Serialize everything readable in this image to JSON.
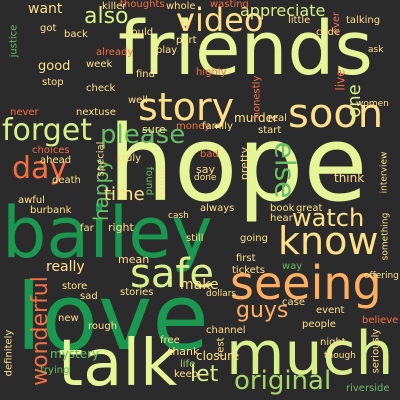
{
  "word_cloud": {
    "background": "#2b2b2b",
    "words": [
      {
        "id": "hope",
        "text": "hope",
        "color": "#e6f598",
        "rotated": false
      },
      {
        "id": "friends",
        "text": "friends",
        "color": "#e6f598",
        "rotated": false
      },
      {
        "id": "bailey",
        "text": "bailey",
        "color": "#1a9850",
        "rotated": false
      },
      {
        "id": "love",
        "text": "love",
        "color": "#1a9850",
        "rotated": false
      },
      {
        "id": "talk",
        "text": "talk",
        "color": "#e6f598",
        "rotated": false
      },
      {
        "id": "much",
        "text": "much",
        "color": "#d9ef8b",
        "rotated": false
      },
      {
        "id": "seeing",
        "text": "seeing",
        "color": "#fdae61",
        "rotated": false
      },
      {
        "id": "know",
        "text": "know",
        "color": "#fee08b",
        "rotated": false
      },
      {
        "id": "soon",
        "text": "soon",
        "color": "#fee08b",
        "rotated": false
      },
      {
        "id": "story",
        "text": "story",
        "color": "#fee08b",
        "rotated": false
      },
      {
        "id": "video",
        "text": "video",
        "color": "#fee08b",
        "rotated": false
      },
      {
        "id": "safe",
        "text": "safe",
        "color": "#d9ef8b",
        "rotated": false
      },
      {
        "id": "original",
        "text": "original",
        "color": "#a6d96a",
        "rotated": false
      },
      {
        "id": "watch",
        "text": "watch",
        "color": "#fee08b",
        "rotated": false
      },
      {
        "id": "please",
        "text": "please",
        "color": "#66bd63",
        "rotated": false
      },
      {
        "id": "forget",
        "text": "forget",
        "color": "#d9ef8b",
        "rotated": false
      },
      {
        "id": "also",
        "text": "also",
        "color": "#d9ef8b",
        "rotated": false
      },
      {
        "id": "day",
        "text": "day",
        "color": "#f46d43",
        "rotated": false
      },
      {
        "id": "guys",
        "text": "guys",
        "color": "#fdae61",
        "rotated": false
      },
      {
        "id": "wonderful",
        "text": "wonderful",
        "color": "#f46d43",
        "rotated": true
      },
      {
        "id": "happy",
        "text": "happy",
        "color": "#66bd63",
        "rotated": true
      },
      {
        "id": "time",
        "text": "time",
        "color": "#fee08b",
        "rotated": false
      },
      {
        "id": "else",
        "text": "else",
        "color": "#66bd63",
        "rotated": true
      },
      {
        "id": "one",
        "text": "one",
        "color": "#d9ef8b",
        "rotated": true
      },
      {
        "id": "let",
        "text": "let",
        "color": "#d9ef8b",
        "rotated": false
      },
      {
        "id": "appreciate",
        "text": "appreciate",
        "color": "#d9ef8b",
        "rotated": false
      },
      {
        "id": "really",
        "text": "really",
        "color": "#fee08b",
        "rotated": false
      },
      {
        "id": "make",
        "text": "make",
        "color": "#fee08b",
        "rotated": false
      },
      {
        "id": "want",
        "text": "want",
        "color": "#fee08b",
        "rotated": false
      },
      {
        "id": "good",
        "text": "good",
        "color": "#fee08b",
        "rotated": false
      },
      {
        "id": "mean",
        "text": "mean",
        "color": "#fee08b",
        "rotated": false
      },
      {
        "id": "right",
        "text": "right",
        "color": "#fee08b",
        "rotated": false
      },
      {
        "id": "sure",
        "text": "sure",
        "color": "#fee08b",
        "rotated": false
      },
      {
        "id": "think",
        "text": "think",
        "color": "#fee08b",
        "rotated": false
      },
      {
        "id": "mystery",
        "text": "mystery",
        "color": "#66bd63",
        "rotated": false
      },
      {
        "id": "murder",
        "text": "murder",
        "color": "#fee08b",
        "rotated": false
      },
      {
        "id": "closure",
        "text": "closure",
        "color": "#fee08b",
        "rotated": false
      },
      {
        "id": "thank",
        "text": "thank",
        "color": "#fee08b",
        "rotated": false
      },
      {
        "id": "stories",
        "text": "stories",
        "color": "#fee08b",
        "rotated": false
      },
      {
        "id": "always",
        "text": "always",
        "color": "#fee08b",
        "rotated": false
      },
      {
        "id": "tickets",
        "text": "tickets",
        "color": "#fee08b",
        "rotated": false
      },
      {
        "id": "case",
        "text": "case",
        "color": "#fee08b",
        "rotated": false
      },
      {
        "id": "people",
        "text": "people",
        "color": "#fee08b",
        "rotated": false
      },
      {
        "id": "night",
        "text": "night",
        "color": "#fee08b",
        "rotated": false
      },
      {
        "id": "seriously",
        "text": "seriously",
        "color": "#fee08b",
        "rotated": true
      },
      {
        "id": "book",
        "text": "book",
        "color": "#fee08b",
        "rotated": false
      },
      {
        "id": "great",
        "text": "great",
        "color": "#fee08b",
        "rotated": false
      },
      {
        "id": "hear",
        "text": "hear",
        "color": "#fee08b",
        "rotated": false
      },
      {
        "id": "first",
        "text": "first",
        "color": "#fee08b",
        "rotated": false
      },
      {
        "id": "way",
        "text": "way",
        "color": "#66bd63",
        "rotated": false
      },
      {
        "id": "going",
        "text": "going",
        "color": "#fee08b",
        "rotated": false
      },
      {
        "id": "pretty",
        "text": "pretty",
        "color": "#fee08b",
        "rotated": true
      },
      {
        "id": "say",
        "text": "say",
        "color": "#fee08b",
        "rotated": false
      },
      {
        "id": "bad",
        "text": "bad",
        "color": "#f46d43",
        "rotated": false
      },
      {
        "id": "truly",
        "text": "truly",
        "color": "#fee08b",
        "rotated": false
      },
      {
        "id": "found",
        "text": "found",
        "color": "#66bd63",
        "rotated": true
      },
      {
        "id": "crime",
        "text": "crime",
        "color": "#fee08b",
        "rotated": true
      },
      {
        "id": "still",
        "text": "still",
        "color": "#fee08b",
        "rotated": false
      },
      {
        "id": "ahead",
        "text": "ahead",
        "color": "#fee08b",
        "rotated": false
      },
      {
        "id": "far",
        "text": "far",
        "color": "#fee08b",
        "rotated": false
      },
      {
        "id": "store",
        "text": "store",
        "color": "#fee08b",
        "rotated": false
      },
      {
        "id": "sad",
        "text": "sad",
        "color": "#fee08b",
        "rotated": false
      },
      {
        "id": "new",
        "text": "new",
        "color": "#fee08b",
        "rotated": false
      },
      {
        "id": "keep",
        "text": "keep",
        "color": "#fee08b",
        "rotated": false
      },
      {
        "id": "free",
        "text": "free",
        "color": "#fee08b",
        "rotated": false
      },
      {
        "id": "life",
        "text": "life",
        "color": "#a6d96a",
        "rotated": false
      },
      {
        "id": "nextuse",
        "text": "nextuse",
        "color": "#fee08b",
        "rotated": false
      },
      {
        "id": "check",
        "text": "check",
        "color": "#fee08b",
        "rotated": false
      },
      {
        "id": "stop",
        "text": "stop",
        "color": "#fee08b",
        "rotated": false
      },
      {
        "id": "week",
        "text": "week",
        "color": "#fee08b",
        "rotated": false
      },
      {
        "id": "find",
        "text": "find",
        "color": "#fee08b",
        "rotated": false
      },
      {
        "id": "well",
        "text": "well",
        "color": "#fee08b",
        "rotated": false
      },
      {
        "id": "highly",
        "text": "highly",
        "color": "#f46d43",
        "rotated": false
      },
      {
        "id": "already",
        "text": "already",
        "color": "#f46d43",
        "rotated": false
      },
      {
        "id": "could",
        "text": "could",
        "color": "#fee08b",
        "rotated": false
      },
      {
        "id": "part",
        "text": "part",
        "color": "#fee08b",
        "rotated": false
      },
      {
        "id": "play",
        "text": "play",
        "color": "#fee08b",
        "rotated": false
      },
      {
        "id": "whole",
        "text": "whole",
        "color": "#fee08b",
        "rotated": false
      },
      {
        "id": "thoughts",
        "text": "thoughts",
        "color": "#f46d43",
        "rotated": false
      },
      {
        "id": "wasting",
        "text": "wasting",
        "color": "#f46d43",
        "rotated": false
      },
      {
        "id": "little",
        "text": "little",
        "color": "#fee08b",
        "rotated": false
      },
      {
        "id": "talking",
        "text": "talking",
        "color": "#fee08b",
        "rotated": false
      },
      {
        "id": "code",
        "text": "code",
        "color": "#fee08b",
        "rotated": false
      },
      {
        "id": "got",
        "text": "got",
        "color": "#fee08b",
        "rotated": false
      },
      {
        "id": "back",
        "text": "back",
        "color": "#fee08b",
        "rotated": false
      },
      {
        "id": "choices",
        "text": "choices",
        "color": "#f46d43",
        "rotated": false
      },
      {
        "id": "death",
        "text": "death",
        "color": "#fee08b",
        "rotated": false
      },
      {
        "id": "awful",
        "text": "awful",
        "color": "#fee08b",
        "rotated": false
      },
      {
        "id": "burbank",
        "text": "burbank",
        "color": "#fee08b",
        "rotated": false
      },
      {
        "id": "never",
        "text": "never",
        "color": "#f46d43",
        "rotated": false
      },
      {
        "id": "real",
        "text": "real",
        "color": "#fee08b",
        "rotated": false
      },
      {
        "id": "money",
        "text": "money",
        "color": "#f46d43",
        "rotated": false
      },
      {
        "id": "family",
        "text": "family",
        "color": "#fee08b",
        "rotated": false
      },
      {
        "id": "start",
        "text": "start",
        "color": "#fee08b",
        "rotated": false
      },
      {
        "id": "special",
        "text": "special",
        "color": "#fee08b",
        "rotated": true
      },
      {
        "id": "channel",
        "text": "channel",
        "color": "#fee08b",
        "rotated": false
      },
      {
        "id": "rough",
        "text": "rough",
        "color": "#fee08b",
        "rotated": false
      },
      {
        "id": "event",
        "text": "event",
        "color": "#fee08b",
        "rotated": false
      },
      {
        "id": "believe",
        "text": "believe",
        "color": "#f46d43",
        "rotated": false
      },
      {
        "id": "riverside",
        "text": "riverside",
        "color": "#66bd63",
        "rotated": false
      },
      {
        "id": "killer",
        "text": "killer",
        "color": "#fee08b",
        "rotated": false
      },
      {
        "id": "honestly",
        "text": "honestly",
        "color": "#f46d43",
        "rotated": true
      },
      {
        "id": "rest",
        "text": "rest",
        "color": "#fee08b",
        "rotated": true
      },
      {
        "id": "ever",
        "text": "ever",
        "color": "#f46d43",
        "rotated": true
      },
      {
        "id": "definitely",
        "text": "definitely",
        "color": "#fee08b",
        "rotated": true
      },
      {
        "id": "justice",
        "text": "justice",
        "color": "#66bd63",
        "rotated": true
      },
      {
        "id": "live",
        "text": "live",
        "color": "#f46d43",
        "rotated": true
      },
      {
        "id": "trying",
        "text": "trying",
        "color": "#66bd63",
        "rotated": false
      },
      {
        "id": "dollars",
        "text": "dollars",
        "color": "#fee08b",
        "rotated": false
      },
      {
        "id": "ask",
        "text": "ask",
        "color": "#fee08b",
        "rotated": false
      },
      {
        "id": "women",
        "text": "women",
        "color": "#fee08b",
        "rotated": false
      },
      {
        "id": "offering",
        "text": "offering",
        "color": "#fee08b",
        "rotated": false
      },
      {
        "id": "something",
        "text": "something",
        "color": "#fee08b",
        "rotated": true
      },
      {
        "id": "interview",
        "text": "interview",
        "color": "#fee08b",
        "rotated": true
      },
      {
        "id": "done",
        "text": "done",
        "color": "#fee08b",
        "rotated": false
      },
      {
        "id": "though",
        "text": "though",
        "color": "#fee08b",
        "rotated": false
      },
      {
        "id": "cash",
        "text": "cash",
        "color": "#fee08b",
        "rotated": false
      }
    ]
  }
}
